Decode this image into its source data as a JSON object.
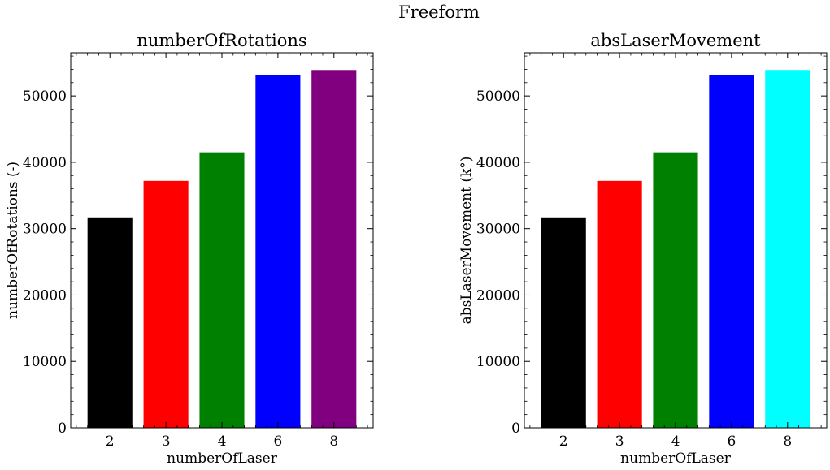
{
  "figure": {
    "suptitle": "Freeform"
  },
  "chart_data": [
    {
      "type": "bar",
      "title": "numberOfRotations",
      "xlabel": "numberOfLaser",
      "ylabel": "numberOfRotations (-)",
      "categories": [
        "2",
        "3",
        "4",
        "6",
        "8"
      ],
      "values": [
        31700,
        37200,
        41500,
        53100,
        53900
      ],
      "colors": [
        "#000000",
        "#ff0000",
        "#008000",
        "#0000ff",
        "#800080"
      ],
      "ylim": [
        0,
        56500
      ],
      "yticks": [
        0,
        10000,
        20000,
        30000,
        40000,
        50000
      ],
      "ytick_labels": [
        "0",
        "10000",
        "20000",
        "30000",
        "40000",
        "50000"
      ],
      "grid": false,
      "legend": "none"
    },
    {
      "type": "bar",
      "title": "absLaserMovement",
      "xlabel": "numberOfLaser",
      "ylabel": "absLaserMovement (k°)",
      "categories": [
        "2",
        "3",
        "4",
        "6",
        "8"
      ],
      "values": [
        31700,
        37200,
        41500,
        53100,
        53900
      ],
      "colors": [
        "#000000",
        "#ff0000",
        "#008000",
        "#0000ff",
        "#00ffff"
      ],
      "ylim": [
        0,
        56500
      ],
      "yticks": [
        0,
        10000,
        20000,
        30000,
        40000,
        50000
      ],
      "ytick_labels": [
        "0",
        "10000",
        "20000",
        "30000",
        "40000",
        "50000"
      ],
      "grid": false,
      "legend": "none"
    }
  ]
}
